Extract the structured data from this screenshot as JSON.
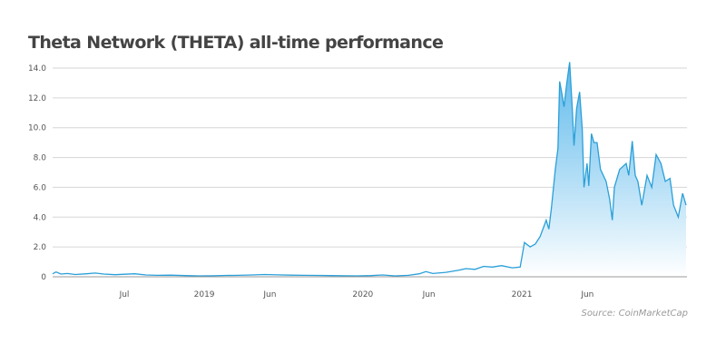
{
  "chart_data": {
    "type": "area",
    "title": "Theta Network (THETA) all-time performance",
    "xlabel": "",
    "ylabel": "",
    "ylim": [
      0,
      14
    ],
    "xlim": [
      "2018-01-17",
      "2022-01-16"
    ],
    "grid": true,
    "legend": "none",
    "line_color": "#2a9fd8",
    "fill_color_top": "#4fb3ea",
    "fill_color_bottom": "#ffffff",
    "y_ticks": [
      {
        "value": 0,
        "label": "0"
      },
      {
        "value": 2,
        "label": "2.0"
      },
      {
        "value": 4,
        "label": "4.0"
      },
      {
        "value": 6,
        "label": "6.0"
      },
      {
        "value": 8,
        "label": "8.0"
      },
      {
        "value": 10,
        "label": "10.0"
      },
      {
        "value": 12,
        "label": "12.0"
      },
      {
        "value": 14,
        "label": "14.0"
      }
    ],
    "x_ticks": [
      {
        "date": "2018-07-01",
        "label": "Jul"
      },
      {
        "date": "2019-01-01",
        "label": "2019"
      },
      {
        "date": "2019-06-01",
        "label": "Jun"
      },
      {
        "date": "2020-01-01",
        "label": "2020"
      },
      {
        "date": "2020-06-01",
        "label": "Jun"
      },
      {
        "date": "2021-01-01",
        "label": "2021"
      },
      {
        "date": "2021-06-01",
        "label": "Jun"
      }
    ],
    "series": [
      {
        "points": [
          [
            "2018-01-17",
            0.2
          ],
          [
            "2018-01-25",
            0.32
          ],
          [
            "2018-02-05",
            0.18
          ],
          [
            "2018-02-20",
            0.22
          ],
          [
            "2018-03-10",
            0.15
          ],
          [
            "2018-04-05",
            0.2
          ],
          [
            "2018-04-25",
            0.25
          ],
          [
            "2018-05-15",
            0.18
          ],
          [
            "2018-06-10",
            0.14
          ],
          [
            "2018-07-01",
            0.17
          ],
          [
            "2018-07-25",
            0.2
          ],
          [
            "2018-08-20",
            0.12
          ],
          [
            "2018-09-15",
            0.1
          ],
          [
            "2018-10-15",
            0.11
          ],
          [
            "2018-11-20",
            0.08
          ],
          [
            "2018-12-20",
            0.06
          ],
          [
            "2019-01-20",
            0.07
          ],
          [
            "2019-02-20",
            0.09
          ],
          [
            "2019-03-20",
            0.1
          ],
          [
            "2019-04-20",
            0.12
          ],
          [
            "2019-05-20",
            0.15
          ],
          [
            "2019-06-20",
            0.13
          ],
          [
            "2019-07-20",
            0.11
          ],
          [
            "2019-08-20",
            0.1
          ],
          [
            "2019-09-20",
            0.09
          ],
          [
            "2019-10-20",
            0.08
          ],
          [
            "2019-11-20",
            0.07
          ],
          [
            "2019-12-20",
            0.06
          ],
          [
            "2020-01-20",
            0.08
          ],
          [
            "2020-02-15",
            0.12
          ],
          [
            "2020-03-15",
            0.06
          ],
          [
            "2020-04-15",
            0.1
          ],
          [
            "2020-05-10",
            0.2
          ],
          [
            "2020-05-25",
            0.35
          ],
          [
            "2020-06-10",
            0.22
          ],
          [
            "2020-07-10",
            0.3
          ],
          [
            "2020-08-10",
            0.45
          ],
          [
            "2020-08-25",
            0.55
          ],
          [
            "2020-09-15",
            0.5
          ],
          [
            "2020-10-05",
            0.7
          ],
          [
            "2020-10-25",
            0.65
          ],
          [
            "2020-11-15",
            0.75
          ],
          [
            "2020-12-10",
            0.6
          ],
          [
            "2020-12-28",
            0.65
          ],
          [
            "2021-01-07",
            2.3
          ],
          [
            "2021-01-20",
            2.0
          ],
          [
            "2021-02-01",
            2.2
          ],
          [
            "2021-02-12",
            2.7
          ],
          [
            "2021-02-26",
            3.8
          ],
          [
            "2021-03-04",
            3.2
          ],
          [
            "2021-03-10",
            4.6
          ],
          [
            "2021-03-19",
            7.2
          ],
          [
            "2021-03-25",
            8.6
          ],
          [
            "2021-03-29",
            13.1
          ],
          [
            "2021-04-03",
            12.3
          ],
          [
            "2021-04-08",
            11.4
          ],
          [
            "2021-04-14",
            12.9
          ],
          [
            "2021-04-21",
            14.4
          ],
          [
            "2021-04-27",
            11.3
          ],
          [
            "2021-05-01",
            8.8
          ],
          [
            "2021-05-07",
            11.3
          ],
          [
            "2021-05-14",
            12.4
          ],
          [
            "2021-05-20",
            9.9
          ],
          [
            "2021-05-24",
            6.0
          ],
          [
            "2021-05-31",
            7.6
          ],
          [
            "2021-06-04",
            6.1
          ],
          [
            "2021-06-10",
            9.6
          ],
          [
            "2021-06-16",
            9.0
          ],
          [
            "2021-06-23",
            9.0
          ],
          [
            "2021-07-01",
            7.2
          ],
          [
            "2021-07-14",
            6.4
          ],
          [
            "2021-07-22",
            5.2
          ],
          [
            "2021-07-28",
            3.8
          ],
          [
            "2021-08-02",
            6.0
          ],
          [
            "2021-08-14",
            7.2
          ],
          [
            "2021-08-29",
            7.6
          ],
          [
            "2021-09-04",
            6.8
          ],
          [
            "2021-09-12",
            9.1
          ],
          [
            "2021-09-19",
            6.8
          ],
          [
            "2021-09-25",
            6.4
          ],
          [
            "2021-10-04",
            4.8
          ],
          [
            "2021-10-16",
            6.8
          ],
          [
            "2021-10-27",
            6.0
          ],
          [
            "2021-11-06",
            8.2
          ],
          [
            "2021-11-17",
            7.6
          ],
          [
            "2021-11-27",
            6.4
          ],
          [
            "2021-12-08",
            6.6
          ],
          [
            "2021-12-16",
            4.8
          ],
          [
            "2021-12-27",
            4.0
          ],
          [
            "2022-01-06",
            5.6
          ],
          [
            "2022-01-14",
            4.8
          ]
        ]
      }
    ],
    "source": "Source: CoinMarketCap"
  }
}
